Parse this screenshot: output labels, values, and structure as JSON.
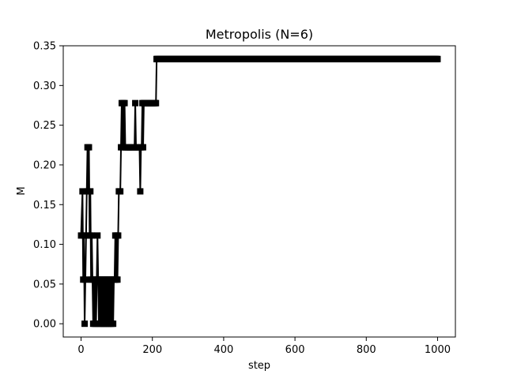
{
  "chart_data": {
    "type": "line",
    "title": "Metropolis (N=6)",
    "xlabel": "step",
    "ylabel": "M",
    "xlim": [
      -50,
      1050
    ],
    "ylim": [
      -0.0167,
      0.35
    ],
    "xticks": [
      0,
      200,
      400,
      600,
      800,
      1000
    ],
    "yticks": [
      0.0,
      0.05,
      0.1,
      0.15,
      0.2,
      0.25,
      0.3,
      0.35
    ],
    "xtick_labels": [
      "0",
      "200",
      "400",
      "600",
      "800",
      "1000"
    ],
    "ytick_labels": [
      "0.00",
      "0.05",
      "0.10",
      "0.15",
      "0.20",
      "0.25",
      "0.30",
      "0.35"
    ],
    "grid": false,
    "legend": "none",
    "series": [
      {
        "color": "#000000",
        "marker": "square",
        "x": [
          0,
          4,
          6,
          8,
          10,
          12,
          14,
          16,
          18,
          20,
          22,
          24,
          26,
          28,
          30,
          32,
          34,
          36,
          38,
          40,
          42,
          44,
          46,
          48,
          50,
          52,
          54,
          56,
          58,
          60,
          62,
          64,
          66,
          68,
          70,
          72,
          74,
          76,
          78,
          80,
          82,
          84,
          86,
          88,
          90,
          92,
          94,
          96,
          98,
          100,
          102,
          104,
          106,
          108,
          110,
          112,
          114,
          116,
          118,
          120,
          122,
          124,
          126,
          128,
          130,
          132,
          134,
          136,
          138,
          140,
          142,
          144,
          146,
          148,
          150,
          152,
          154,
          156,
          158,
          160,
          162,
          164,
          166,
          168,
          170,
          172,
          174,
          176,
          178,
          180,
          182,
          184,
          186,
          188,
          190,
          192,
          194,
          196,
          198,
          200,
          202,
          204,
          206,
          208,
          210,
          212,
          1000
        ],
        "y": [
          0.1111,
          0.1667,
          0.0556,
          0.1111,
          0.0,
          0.0556,
          0.1111,
          0.1667,
          0.2222,
          0.1667,
          0.2222,
          0.1111,
          0.1667,
          0.0556,
          0.1111,
          0.0556,
          0.0,
          0.0556,
          0.0,
          0.0556,
          0.0,
          0.0556,
          0.1111,
          0.0556,
          0.0,
          0.0556,
          0.0,
          0.0556,
          0.0,
          0.0556,
          0.0,
          0.0556,
          0.0,
          0.0556,
          0.0,
          0.0556,
          0.0,
          0.0556,
          0.0,
          0.0556,
          0.0,
          0.0556,
          0.0,
          0.0556,
          0.0,
          0.0556,
          0.0556,
          0.1111,
          0.0556,
          0.1111,
          0.0556,
          0.1111,
          0.1667,
          0.1667,
          0.1667,
          0.2222,
          0.2778,
          0.2222,
          0.2778,
          0.2222,
          0.2778,
          0.2222,
          0.2222,
          0.2222,
          0.2222,
          0.2222,
          0.2222,
          0.2222,
          0.2222,
          0.2222,
          0.2222,
          0.2222,
          0.2222,
          0.2222,
          0.2222,
          0.2778,
          0.2222,
          0.2222,
          0.2222,
          0.2222,
          0.2222,
          0.2222,
          0.1667,
          0.2222,
          0.2222,
          0.2778,
          0.2222,
          0.2778,
          0.2778,
          0.2778,
          0.2778,
          0.2778,
          0.2778,
          0.2778,
          0.2778,
          0.2778,
          0.2778,
          0.2778,
          0.2778,
          0.2778,
          0.2778,
          0.2778,
          0.2778,
          0.2778,
          0.2778,
          0.3333,
          0.3333
        ]
      }
    ]
  }
}
